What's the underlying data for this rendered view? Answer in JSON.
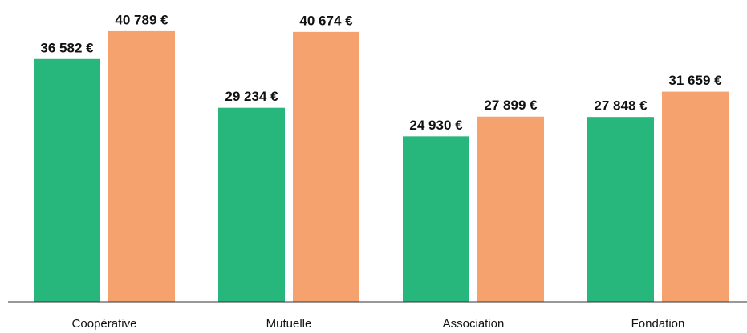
{
  "chart_data": {
    "type": "bar",
    "categories": [
      "Coopérative",
      "Mutuelle",
      "Association",
      "Fondation"
    ],
    "series": [
      {
        "color": "#27b67c",
        "values": [
          36582,
          29234,
          24930,
          27848
        ],
        "value_labels": [
          "36 582 €",
          "29 234 €",
          "24 930 €",
          "27 848 €"
        ]
      },
      {
        "color": "#f6a26f",
        "values": [
          40789,
          40674,
          27899,
          31659
        ],
        "value_labels": [
          "40 789 €",
          "40 674 €",
          "27 899 €",
          "31 659 €"
        ]
      }
    ],
    "ylim": [
      0,
      45000
    ]
  }
}
